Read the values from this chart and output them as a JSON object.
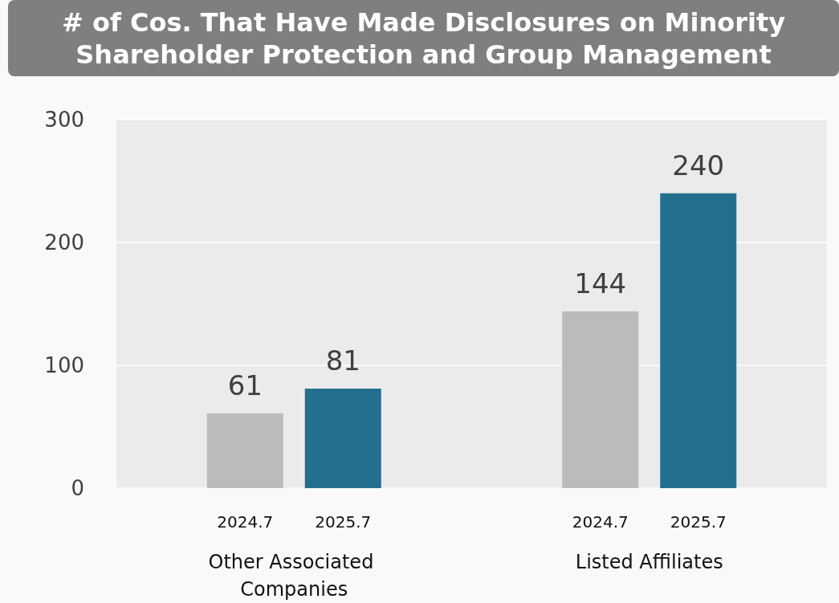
{
  "chart_data": {
    "type": "bar",
    "title": "# of Cos. That Have Made Disclosures on Minority Shareholder Protection and Group Management",
    "categories": [
      "Other Associated Companies",
      "Listed Affiliates"
    ],
    "series": [
      {
        "name": "2024.7",
        "color": "#bbbbbb",
        "values": [
          61,
          144
        ]
      },
      {
        "name": "2025.7",
        "color": "#23708e",
        "values": [
          81,
          240
        ]
      }
    ],
    "ylim": [
      0,
      300
    ],
    "yticks": [
      0,
      100,
      200,
      300
    ],
    "grid": "y",
    "data_labels": true
  }
}
